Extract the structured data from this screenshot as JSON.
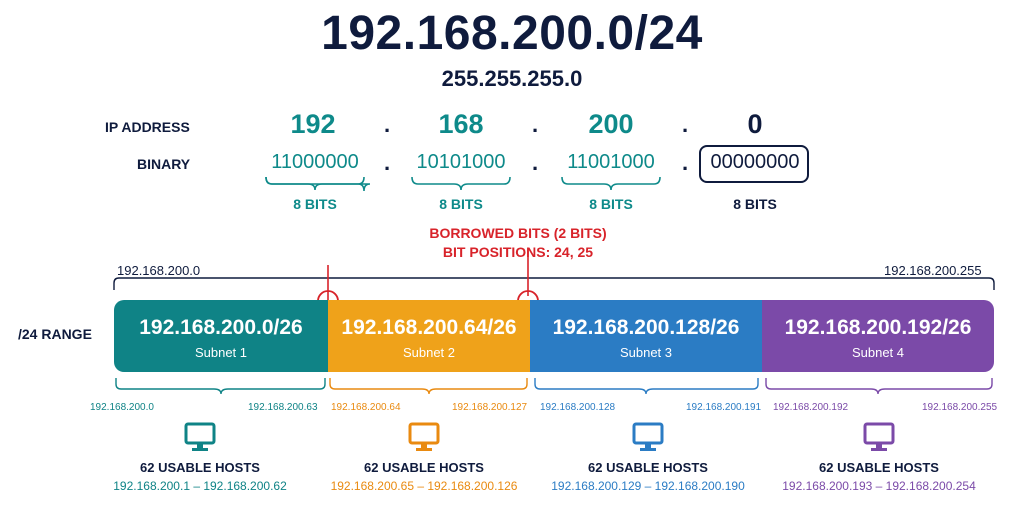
{
  "header": {
    "title": "192.168.200.0/24",
    "mask": "255.255.255.0"
  },
  "ip_row": {
    "label": "IP ADDRESS",
    "octets": [
      "192",
      "168",
      "200",
      "0"
    ],
    "dots": [
      ".",
      ".",
      "."
    ]
  },
  "binary_row": {
    "label": "BINARY",
    "octets": [
      "11000000",
      "10101000",
      "11001000",
      "00000000"
    ],
    "bits_labels": [
      "8 BITS",
      "8 BITS",
      "8 BITS",
      "8 BITS"
    ]
  },
  "borrowed": {
    "line1": "BORROWED BITS (2 BITS)",
    "line2": "BIT POSITIONS: 24, 25"
  },
  "range": {
    "label": "/24 RANGE",
    "start": "192.168.200.0",
    "end": "192.168.200.255"
  },
  "subnets": [
    {
      "network": "192.168.200.0/26",
      "name": "Subnet 1",
      "first": "192.168.200.0",
      "last": "192.168.200.63",
      "hosts_label": "62 USABLE HOSTS",
      "host_range": "192.168.200.1 – 192.168.200.62",
      "color": "#0f8386"
    },
    {
      "network": "192.168.200.64/26",
      "name": "Subnet 2",
      "first": "192.168.200.64",
      "last": "192.168.200.127",
      "hosts_label": "62 USABLE HOSTS",
      "host_range": "192.168.200.65 – 192.168.200.126",
      "color": "#efa21a"
    },
    {
      "network": "192.168.200.128/26",
      "name": "Subnet 3",
      "first": "192.168.200.128",
      "last": "192.168.200.191",
      "hosts_label": "62 USABLE HOSTS",
      "host_range": "192.168.200.129 – 192.168.200.190",
      "color": "#2b7cc4"
    },
    {
      "network": "192.168.200.192/26",
      "name": "Subnet 4",
      "first": "192.168.200.192",
      "last": "192.168.200.255",
      "hosts_label": "62 USABLE HOSTS",
      "host_range": "192.168.200.193 – 192.168.200.254",
      "color": "#7b4aa8"
    }
  ],
  "icons": [
    "computer-monitor-icon"
  ]
}
